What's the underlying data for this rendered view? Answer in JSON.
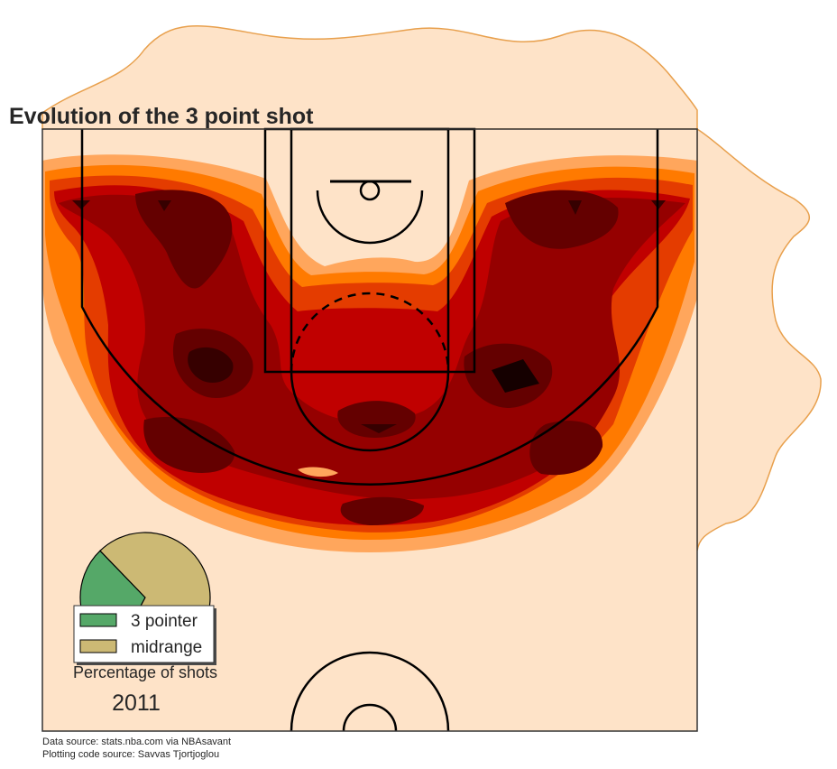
{
  "chart_data": {
    "type": "heatmap",
    "title": "Evolution of the 3 point shot",
    "description_year": "2011",
    "pie": {
      "label": "Percentage of shots",
      "slices": [
        {
          "name": "3 pointer",
          "value": 30,
          "color": "#55a868"
        },
        {
          "name": "midrange",
          "value": 70,
          "color": "#ccb974"
        }
      ]
    },
    "density_levels": [
      {
        "level": 1,
        "color": "#ffa65c"
      },
      {
        "level": 2,
        "color": "#ff7a00"
      },
      {
        "level": 3,
        "color": "#e43c00"
      },
      {
        "level": 4,
        "color": "#c00000"
      },
      {
        "level": 5,
        "color": "#950000"
      },
      {
        "level": 6,
        "color": "#640000"
      },
      {
        "level": 7,
        "color": "#360000"
      }
    ],
    "hotspots": [
      {
        "name": "left corner / wing",
        "level": 7
      },
      {
        "name": "right corner / wing",
        "level": 7
      },
      {
        "name": "left elbow",
        "level": 7
      },
      {
        "name": "right elbow",
        "level": 7
      },
      {
        "name": "left baseline 3",
        "level": 6
      },
      {
        "name": "right baseline 3",
        "level": 6
      },
      {
        "name": "top of key 3",
        "level": 6
      }
    ],
    "background_color": "#fee3c8",
    "marginal_color": "#e8a04d",
    "source_lines": [
      "Data source: stats.nba.com via NBAsavant",
      "Plotting code source: Savvas Tjortjoglou"
    ]
  }
}
